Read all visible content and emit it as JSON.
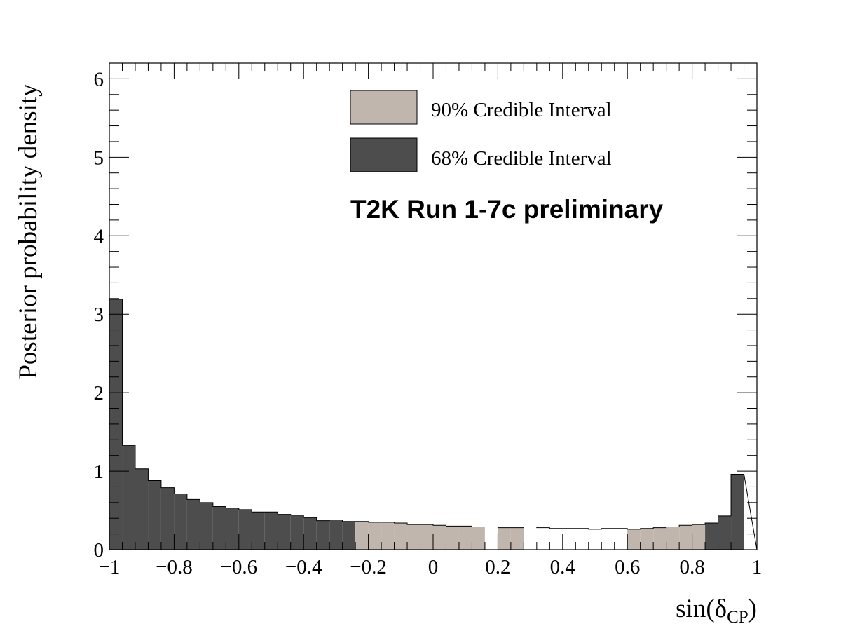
{
  "chart_data": {
    "type": "bar",
    "title": "",
    "xlabel": "sin(δ",
    "xlabel_sub": "CP",
    "xlabel_close": ")",
    "ylabel": "Posterior probability density",
    "xlim": [
      -1,
      1
    ],
    "ylim": [
      0,
      6.2
    ],
    "x_ticks": [
      -1,
      -0.8,
      -0.6,
      -0.4,
      -0.2,
      0,
      0.2,
      0.4,
      0.6,
      0.8,
      1
    ],
    "x_tick_labels": [
      "−1",
      "−0.8",
      "−0.6",
      "−0.4",
      "−0.2",
      "0",
      "0.2",
      "0.4",
      "0.6",
      "0.8",
      "1"
    ],
    "y_ticks": [
      0,
      1,
      2,
      3,
      4,
      5,
      6
    ],
    "y_tick_labels": [
      "0",
      "1",
      "2",
      "3",
      "4",
      "5",
      "6"
    ],
    "bin_width": 0.04,
    "bin_start": -1,
    "values": [
      3.19,
      1.33,
      1.03,
      0.88,
      0.79,
      0.71,
      0.64,
      0.6,
      0.55,
      0.53,
      0.51,
      0.48,
      0.48,
      0.45,
      0.44,
      0.41,
      0.37,
      0.38,
      0.36,
      0.36,
      0.35,
      0.35,
      0.34,
      0.32,
      0.32,
      0.31,
      0.3,
      0.3,
      0.29,
      0.29,
      0.28,
      0.28,
      0.29,
      0.28,
      0.27,
      0.27,
      0.27,
      0.26,
      0.27,
      0.27,
      0.26,
      0.27,
      0.28,
      0.29,
      0.31,
      0.32,
      0.34,
      0.43,
      0.96
    ],
    "bin_interval": [
      "68",
      "68",
      "68",
      "68",
      "68",
      "68",
      "68",
      "68",
      "68",
      "68",
      "68",
      "68",
      "68",
      "68",
      "68",
      "68",
      "68",
      "68",
      "68",
      "90",
      "90",
      "90",
      "90",
      "90",
      "90",
      "90",
      "90",
      "90",
      "90",
      "none",
      "90",
      "90",
      "none",
      "none",
      "none",
      "none",
      "none",
      "none",
      "none",
      "none",
      "90",
      "90",
      "90",
      "90",
      "90",
      "90",
      "68",
      "68",
      "68"
    ],
    "colors": {
      "68": "#4d4d4d",
      "90": "#c1b6ad",
      "none": "#ffffff"
    },
    "legend": [
      {
        "key": "90",
        "label": "90% Credible Interval"
      },
      {
        "key": "68",
        "label": "68% Credible Interval"
      }
    ],
    "legend_position": "top-right",
    "annotation": "T2K Run 1-7c preliminary",
    "grid": false
  }
}
